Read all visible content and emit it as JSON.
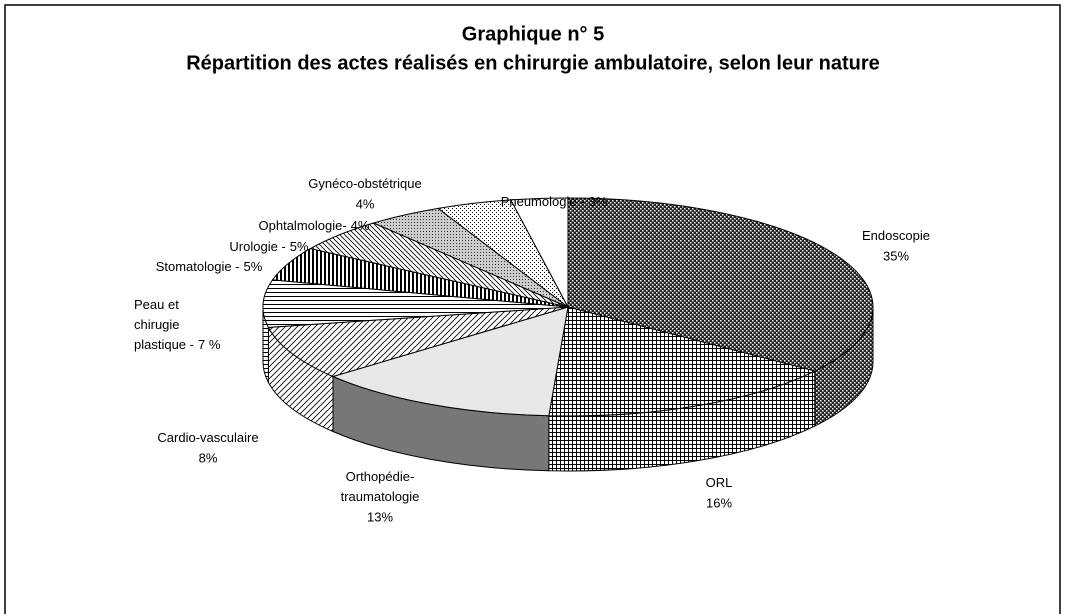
{
  "chart_data": {
    "type": "pie",
    "title": "Graphique n° 5",
    "subtitle": "Répartition des actes réalisés en chirurgie ambulatoire, selon leur nature",
    "categories": [
      [
        "Endoscopie"
      ],
      [
        "ORL"
      ],
      [
        "Orthopédie-",
        "traumatologie"
      ],
      [
        "Cardio-vasculaire"
      ],
      [
        "Peau et",
        "chirugie",
        "plastique -"
      ],
      [
        "Stomatologie -"
      ],
      [
        "Urologie -"
      ],
      [
        "Ophtalmologie-"
      ],
      [
        "Gynéco-obstétrique"
      ],
      [
        "Pneumologie -"
      ]
    ],
    "values": [
      35,
      16,
      13,
      8,
      7,
      5,
      5,
      4,
      4,
      3
    ],
    "value_labels": [
      "35%",
      "16%",
      "13%",
      "8%",
      "7 %",
      "5%",
      "5%",
      "4%",
      "4%",
      "3%"
    ]
  }
}
